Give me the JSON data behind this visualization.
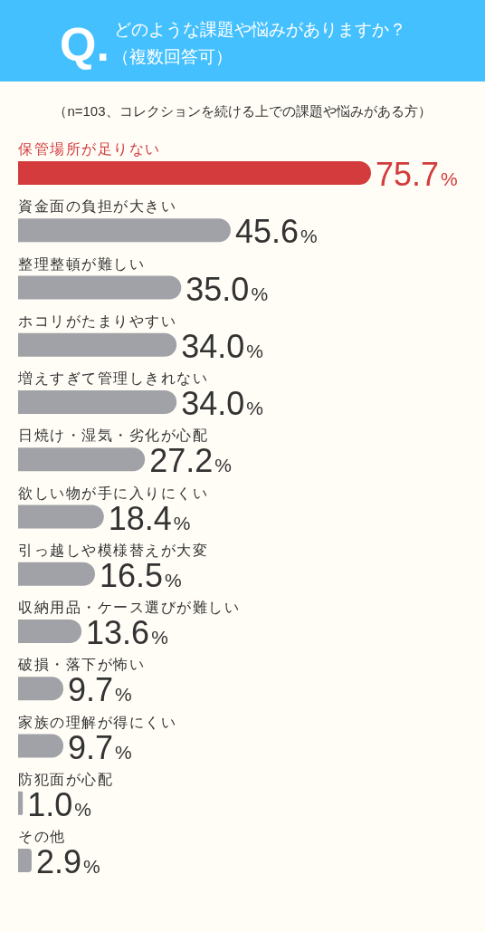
{
  "chart_data": {
    "type": "bar",
    "orientation": "horizontal",
    "title": "どのような課題や悩みがありますか？",
    "subtitle": "（複数回答可）",
    "annotations": [
      "Q.",
      "（n=103、コレクションを続ける上での課題や悩みがある方）"
    ],
    "categories": [
      "保管場所が足りない",
      "資金面の負担が大きい",
      "整理整頓が難しい",
      "ホコリがたまりやすい",
      "増えすぎて管理しきれない",
      "日焼け・湿気・劣化が心配",
      "欲しい物が手に入りにくい",
      "引っ越しや模様替えが大変",
      "収納用品・ケース選びが難しい",
      "破損・落下が怖い",
      "家族の理解が得にくい",
      "防犯面が心配",
      "その他"
    ],
    "values": [
      75.7,
      45.6,
      35.0,
      34.0,
      34.0,
      27.2,
      18.4,
      16.5,
      13.6,
      9.7,
      9.7,
      1.0,
      2.9
    ],
    "colors": [
      "#d33b3d",
      "#a0a2a7",
      "#a0a2a7",
      "#a0a2a7",
      "#a0a2a7",
      "#a0a2a7",
      "#a0a2a7",
      "#a0a2a7",
      "#a0a2a7",
      "#a0a2a7",
      "#a0a2a7",
      "#a0a2a7",
      "#a0a2a7"
    ],
    "value_labels": [
      "75.7%",
      "45.6%",
      "35.0%",
      "34.0%",
      "34.0%",
      "27.2%",
      "18.4%",
      "16.5%",
      "13.6%",
      "9.7%",
      "9.7%",
      "1.0%",
      "2.9%"
    ]
  }
}
